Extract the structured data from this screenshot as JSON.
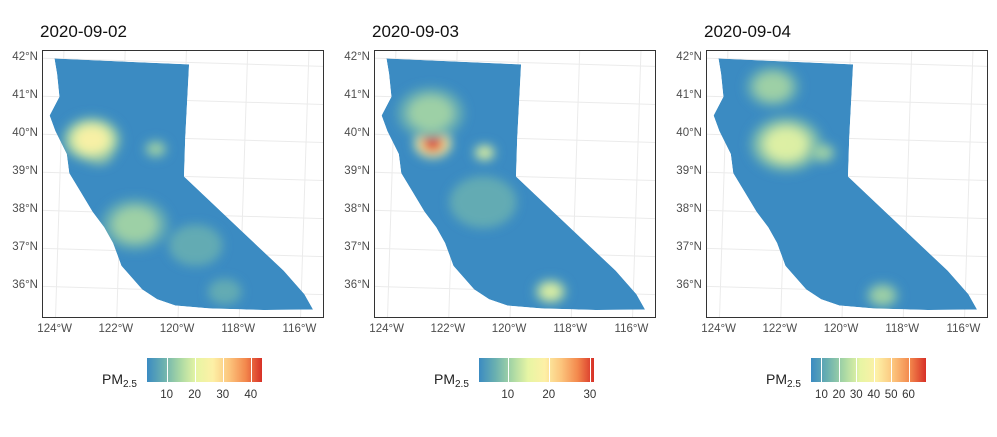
{
  "panels": [
    {
      "title": "2020-09-02",
      "legend": {
        "label": "PM",
        "sub": "2.5",
        "ticks": [
          10,
          20,
          30,
          40
        ],
        "min": 3,
        "max": 44
      },
      "hotspots": [
        {
          "lon": -122.8,
          "lat": 39.6,
          "intensity": 1.0,
          "spread": 0.55
        },
        {
          "lon": -123.0,
          "lat": 39.9,
          "intensity": 0.5,
          "spread": 0.9
        },
        {
          "lon": -120.9,
          "lat": 39.7,
          "intensity": 0.35,
          "spread": 0.35
        },
        {
          "lon": -121.5,
          "lat": 37.7,
          "intensity": 0.25,
          "spread": 1.0
        },
        {
          "lon": -119.5,
          "lat": 37.2,
          "intensity": 0.2,
          "spread": 0.8
        },
        {
          "lon": -118.5,
          "lat": 36.0,
          "intensity": 0.2,
          "spread": 0.5
        }
      ]
    },
    {
      "title": "2020-09-03",
      "legend": {
        "label": "PM",
        "sub": "2.5",
        "ticks": [
          10,
          20,
          30
        ],
        "min": 3,
        "max": 31
      },
      "hotspots": [
        {
          "lon": -122.7,
          "lat": 39.8,
          "intensity": 1.0,
          "spread": 0.6
        },
        {
          "lon": -122.8,
          "lat": 40.6,
          "intensity": 0.35,
          "spread": 1.0
        },
        {
          "lon": -121.0,
          "lat": 39.6,
          "intensity": 0.4,
          "spread": 0.35
        },
        {
          "lon": -118.7,
          "lat": 36.0,
          "intensity": 0.45,
          "spread": 0.5
        },
        {
          "lon": -121.0,
          "lat": 38.3,
          "intensity": 0.15,
          "spread": 1.0
        }
      ]
    },
    {
      "title": "2020-09-04",
      "legend": {
        "label": "PM",
        "sub": "2.5",
        "ticks": [
          10,
          20,
          30,
          40,
          50,
          60
        ],
        "min": 4,
        "max": 70
      },
      "hotspots": [
        {
          "lon": -122.3,
          "lat": 39.8,
          "intensity": 1.0,
          "spread": 0.4
        },
        {
          "lon": -122.0,
          "lat": 39.8,
          "intensity": 0.45,
          "spread": 1.1
        },
        {
          "lon": -120.8,
          "lat": 39.6,
          "intensity": 0.3,
          "spread": 0.4
        },
        {
          "lon": -118.7,
          "lat": 35.9,
          "intensity": 0.35,
          "spread": 0.5
        },
        {
          "lon": -122.5,
          "lat": 41.3,
          "intensity": 0.25,
          "spread": 0.8
        }
      ]
    }
  ],
  "lat_labels": [
    "42°N",
    "41°N",
    "40°N",
    "39°N",
    "38°N",
    "37°N",
    "36°N"
  ],
  "lon_labels": [
    "124°W",
    "122°W",
    "120°W",
    "118°W",
    "116°W"
  ],
  "colors": {
    "scale": [
      "#3B8BC2",
      "#6AB0B0",
      "#A8D7A4",
      "#E7F5A4",
      "#FDF0A6",
      "#FCC57D",
      "#F3894D",
      "#D73027"
    ],
    "grid": "#ebebeb"
  }
}
